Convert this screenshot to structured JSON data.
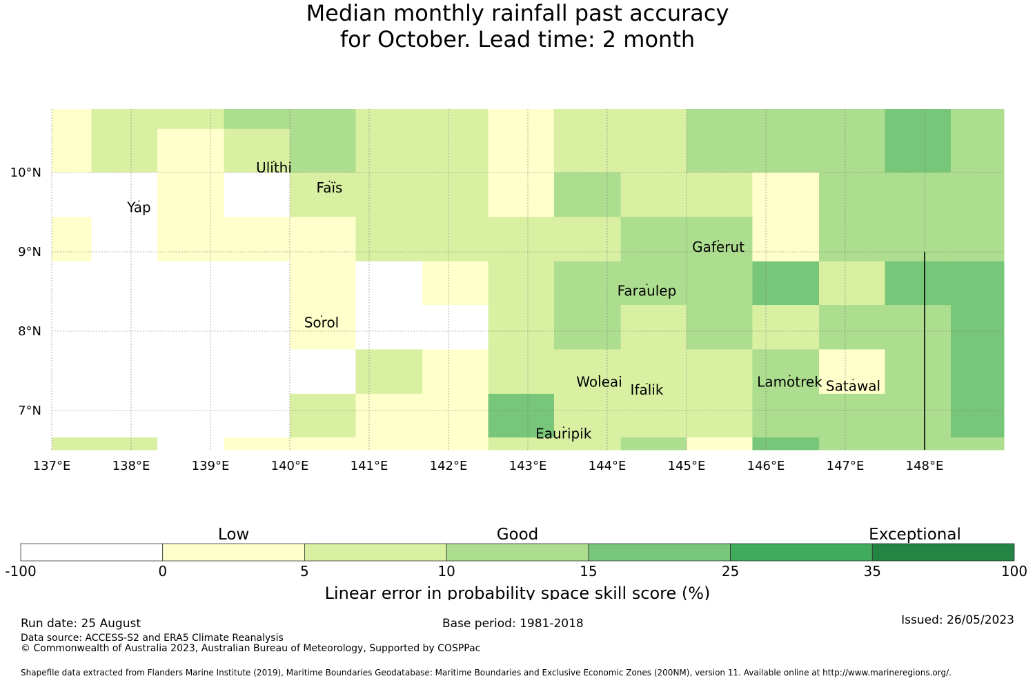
{
  "title": {
    "line1": "Median monthly rainfall past accuracy",
    "line2": "for October. Lead time: 2 month"
  },
  "map": {
    "lon_range": [
      137.0,
      149.0
    ],
    "lat_range": [
      6.5,
      10.8
    ],
    "lon_ticks": [
      "137°E",
      "138°E",
      "139°E",
      "140°E",
      "141°E",
      "142°E",
      "143°E",
      "144°E",
      "145°E",
      "146°E",
      "147°E",
      "148°E"
    ],
    "lat_ticks": [
      "10°N",
      "9°N",
      "8°N",
      "7°N"
    ],
    "places": [
      {
        "name": "Ulithi",
        "lon": 139.8,
        "lat": 10.0
      },
      {
        "name": "Yap",
        "lon": 138.1,
        "lat": 9.5
      },
      {
        "name": "Faïs",
        "lon": 140.5,
        "lat": 9.75
      },
      {
        "name": "Gaferut",
        "lon": 145.4,
        "lat": 9.0
      },
      {
        "name": "Faraulep",
        "lon": 144.5,
        "lat": 8.45
      },
      {
        "name": "Sorol",
        "lon": 140.4,
        "lat": 8.05
      },
      {
        "name": "Woleai",
        "lon": 143.9,
        "lat": 7.3
      },
      {
        "name": "Ifalik",
        "lon": 144.5,
        "lat": 7.2
      },
      {
        "name": "Lamotrek",
        "lon": 146.3,
        "lat": 7.3
      },
      {
        "name": "Satawal",
        "lon": 147.1,
        "lat": 7.25
      },
      {
        "name": "Eauripik",
        "lon": 143.45,
        "lat": 6.65
      }
    ],
    "grid_cols_lon": [
      137.0,
      137.5,
      138.33,
      139.17,
      140.0,
      140.83,
      141.67,
      142.5,
      143.33,
      144.17,
      145.0,
      145.83,
      146.67,
      147.5,
      148.33,
      149.0
    ],
    "grid_rows_lat": [
      10.8,
      10.55,
      10.0,
      9.44,
      8.88,
      8.33,
      7.77,
      7.21,
      6.66,
      6.5
    ],
    "cell_classes": [
      [
        1,
        2,
        2,
        3,
        3,
        2,
        2,
        1,
        2,
        2,
        3,
        3,
        3,
        4,
        3
      ],
      [
        1,
        2,
        1,
        2,
        3,
        2,
        2,
        1,
        2,
        2,
        3,
        3,
        3,
        4,
        3
      ],
      [
        0,
        0,
        1,
        0,
        2,
        2,
        2,
        1,
        3,
        2,
        2,
        1,
        3,
        3,
        3
      ],
      [
        1,
        0,
        1,
        1,
        1,
        2,
        2,
        2,
        2,
        3,
        3,
        1,
        3,
        3,
        3
      ],
      [
        0,
        0,
        0,
        0,
        1,
        0,
        1,
        2,
        3,
        3,
        3,
        4,
        2,
        4,
        4
      ],
      [
        0,
        0,
        0,
        0,
        1,
        0,
        0,
        2,
        3,
        2,
        3,
        2,
        3,
        3,
        4
      ],
      [
        0,
        0,
        0,
        0,
        0,
        2,
        1,
        2,
        2,
        2,
        2,
        3,
        1,
        3,
        4
      ],
      [
        0,
        0,
        0,
        0,
        2,
        1,
        1,
        4,
        2,
        2,
        2,
        3,
        3,
        3,
        4
      ],
      [
        2,
        2,
        0,
        1,
        1,
        1,
        1,
        2,
        2,
        3,
        1,
        4,
        3,
        3,
        3
      ]
    ],
    "boundary_line": {
      "lon": 148.0,
      "lat_top": 9.0
    }
  },
  "colorbar": {
    "category_labels": [
      "Low",
      "Good",
      "Exceptional"
    ],
    "tick_labels": [
      "-100",
      "0",
      "5",
      "10",
      "15",
      "25",
      "35",
      "100"
    ],
    "colors": [
      "#ffffff",
      "#ffffcc",
      "#d9f0a3",
      "#addd8e",
      "#78c679",
      "#41ab5d",
      "#238443"
    ],
    "axis_label": "Linear error in probability space skill score (%)"
  },
  "footer": {
    "run_date": "Run date: 25 August",
    "base_period": "Base period: 1981-2018",
    "issued": "Issued: 26/05/2023",
    "data_source": "Data source: ACCESS-S2 and ERA5 Climate Reanalysis",
    "copyright": "© Commonwealth of Australia 2023, Australian Bureau of Meteorology, Supported by COSPPac",
    "shapefile": "Shapefile data extracted from Flanders Marine Institute (2019), Maritime Boundaries Geodatabase: Maritime Boundaries and Exclusive Economic Zones (200NM), version 11. Available online at http://www.marineregions.org/."
  }
}
